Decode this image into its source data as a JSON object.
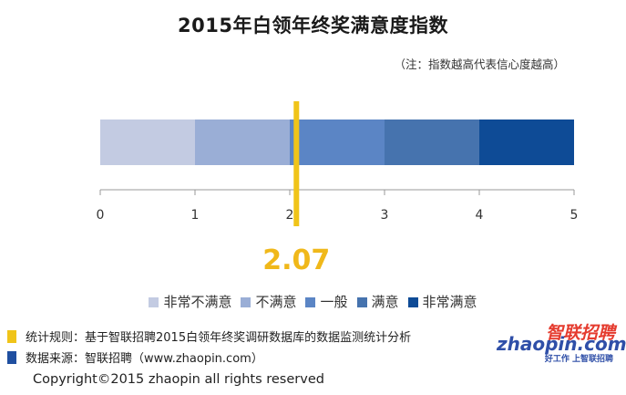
{
  "title": "2015年白领年终奖满意度指数",
  "note": "（注：指数越高代表信心度越高）",
  "chart_data": {
    "type": "bar",
    "orientation": "horizontal",
    "title": "2015年白领年终奖满意度指数",
    "xlim": [
      0,
      5
    ],
    "ticks": [
      "0",
      "1",
      "2",
      "3",
      "4",
      "5"
    ],
    "segments": [
      {
        "name": "非常不满意",
        "start": 0,
        "end": 1,
        "color": "#c3cbe2"
      },
      {
        "name": "不满意",
        "start": 1,
        "end": 2,
        "color": "#9aaed6"
      },
      {
        "name": "一般",
        "start": 2,
        "end": 3,
        "color": "#5b85c5"
      },
      {
        "name": "满意",
        "start": 3,
        "end": 4,
        "color": "#4673ae"
      },
      {
        "name": "非常满意",
        "start": 4,
        "end": 5,
        "color": "#0e4b96"
      }
    ],
    "marker": {
      "value": 2.07,
      "label": "2.07",
      "color": "#f0c419"
    }
  },
  "legend": [
    {
      "label": "非常不满意",
      "color": "#c3cbe2"
    },
    {
      "label": "不满意",
      "color": "#9aaed6"
    },
    {
      "label": "一般",
      "color": "#5b85c5"
    },
    {
      "label": "满意",
      "color": "#4673ae"
    },
    {
      "label": "非常满意",
      "color": "#0e4b96"
    }
  ],
  "footer": {
    "rule": {
      "text": "统计规则：基于智联招聘2015白领年终奖调研数据库的数据监测统计分析",
      "color": "#f0c419"
    },
    "source": {
      "text": "数据来源：智联招聘（www.zhaopin.com）",
      "color": "#1f4fa0"
    },
    "copyright": "Copyright©2015 zhaopin all rights reserved"
  },
  "logo": {
    "cn": "智联招聘",
    "en": "zhaopin.com",
    "tagline": "好工作 上智联招聘"
  }
}
